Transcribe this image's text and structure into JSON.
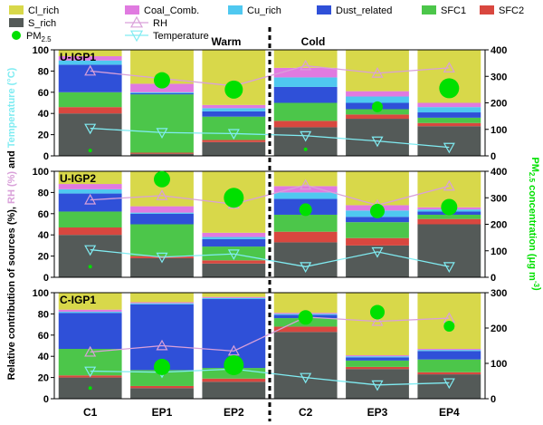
{
  "legend": {
    "items": [
      {
        "label": "Cl_rich",
        "color": "#d8d84a",
        "kind": "bar"
      },
      {
        "label": "Coal_Comb.",
        "color": "#e07ae0",
        "kind": "bar"
      },
      {
        "label": "Cu_rich",
        "color": "#4fc8f0",
        "kind": "bar"
      },
      {
        "label": "Dust_related",
        "color": "#2f50d8",
        "kind": "bar"
      },
      {
        "label": "SFC1",
        "color": "#4cc64a",
        "kind": "bar"
      },
      {
        "label": "SFC2",
        "color": "#d9473f",
        "kind": "bar"
      },
      {
        "label": "S_rich",
        "color": "#545a58",
        "kind": "bar"
      },
      {
        "label": "PM",
        "sub": "2.5",
        "color": "#00e000",
        "kind": "dot"
      },
      {
        "label": "RH",
        "color": "#d9a0d9",
        "kind": "triangle-up"
      },
      {
        "label": "Temperature",
        "color": "#80ecf2",
        "kind": "triangle-down"
      }
    ]
  },
  "axes": {
    "left_label_parts": [
      {
        "text": "Relative contribution of sources (%), ",
        "color": "#000000"
      },
      {
        "text": "RH (%)",
        "color": "#d9a0d9"
      },
      {
        "text": " and ",
        "color": "#000000"
      },
      {
        "text": "Temperature (°C)",
        "color": "#80ecf2"
      }
    ],
    "right_label_parts": [
      {
        "text": "PM",
        "color": "#00e000"
      },
      {
        "text": "2.5",
        "color": "#00e000",
        "sub": true
      },
      {
        "text": " concentration (μg m",
        "color": "#00e000"
      },
      {
        "text": "-3",
        "color": "#00e000",
        "sup": true
      },
      {
        "text": ")",
        "color": "#00e000"
      }
    ]
  },
  "annotations": {
    "warm": "Warm",
    "cold": "Cold"
  },
  "chart_data": {
    "type": "stacked bar",
    "categories": [
      "C1",
      "EP1",
      "EP2",
      "C2",
      "EP3",
      "EP4"
    ],
    "series_names": [
      "S_rich",
      "SFC2",
      "SFC1",
      "Dust_related",
      "Cu_rich",
      "Coal_Comb.",
      "Cl_rich"
    ],
    "series_colors": {
      "S_rich": "#545a58",
      "SFC2": "#d9473f",
      "SFC1": "#4cc64a",
      "Dust_related": "#2f50d8",
      "Cu_rich": "#4fc8f0",
      "Coal_Comb.": "#e07ae0",
      "Cl_rich": "#d8d84a"
    },
    "line_colors": {
      "RH": "#d9a0d9",
      "Temperature": "#80ecf2",
      "PM2.5": "#00e000"
    },
    "panels": [
      {
        "name": "U-IGP1",
        "ylim": [
          0,
          100
        ],
        "yticks": [
          0,
          20,
          40,
          60,
          80,
          100
        ],
        "right_ylim": [
          0,
          400
        ],
        "right_yticks": [
          0,
          100,
          200,
          300,
          400
        ],
        "stacks": [
          [
            40,
            6,
            14,
            26,
            4,
            4,
            6
          ],
          [
            2,
            1,
            55,
            1,
            1,
            8,
            32
          ],
          [
            13,
            2,
            22,
            5,
            3,
            3,
            52
          ],
          [
            27,
            6,
            17,
            15,
            9,
            9,
            17
          ],
          [
            35,
            4,
            5,
            6,
            6,
            5,
            39
          ],
          [
            28,
            3,
            5,
            5,
            5,
            4,
            50
          ]
        ],
        "RH": [
          80,
          73,
          66,
          85,
          78,
          83
        ],
        "Temperature": [
          26,
          22,
          21,
          19,
          14,
          8
        ],
        "PM25": [
          20,
          285,
          250,
          25,
          185,
          255
        ],
        "PM25_sizes": [
          2,
          9,
          10,
          2,
          6,
          11
        ]
      },
      {
        "name": "U-IGP2",
        "ylim": [
          0,
          100
        ],
        "yticks": [
          0,
          20,
          40,
          60,
          80,
          100
        ],
        "right_ylim": [
          0,
          400
        ],
        "right_yticks": [
          0,
          100,
          200,
          300,
          400
        ],
        "stacks": [
          [
            40,
            7,
            15,
            17,
            4,
            5,
            12
          ],
          [
            18,
            2,
            30,
            10,
            1,
            6,
            33
          ],
          [
            13,
            3,
            13,
            7,
            2,
            4,
            58
          ],
          [
            33,
            10,
            16,
            15,
            6,
            6,
            14
          ],
          [
            30,
            7,
            15,
            5,
            6,
            5,
            32
          ],
          [
            50,
            5,
            4,
            3,
            2,
            2,
            34
          ]
        ],
        "RH": [
          73,
          77,
          69,
          87,
          68,
          86
        ],
        "Temperature": [
          26,
          19,
          22,
          10,
          24,
          10
        ],
        "PM25": [
          40,
          370,
          300,
          255,
          250,
          265
        ],
        "PM25_sizes": [
          2,
          9,
          11,
          7,
          8,
          9
        ]
      },
      {
        "name": "C-IGP1",
        "ylim": [
          0,
          100
        ],
        "yticks": [
          0,
          20,
          40,
          60,
          80,
          100
        ],
        "right_ylim": [
          0,
          300
        ],
        "right_yticks": [
          0,
          100,
          200,
          300
        ],
        "stacks": [
          [
            20,
            2,
            25,
            34,
            1,
            2,
            16
          ],
          [
            10,
            2,
            15,
            62,
            1,
            1,
            9
          ],
          [
            16,
            3,
            10,
            65,
            1,
            1,
            4
          ],
          [
            63,
            5,
            8,
            3,
            1,
            1,
            19
          ],
          [
            28,
            2,
            6,
            3,
            1,
            1,
            59
          ],
          [
            23,
            2,
            12,
            8,
            1,
            1,
            53
          ]
        ],
        "RH": [
          44,
          50,
          45,
          77,
          73,
          76
        ],
        "Temperature": [
          26,
          25,
          28,
          20,
          13,
          15
        ],
        "PM25": [
          30,
          90,
          95,
          230,
          245,
          205
        ],
        "PM25_sizes": [
          2,
          9,
          11,
          8,
          8,
          6
        ]
      }
    ]
  }
}
